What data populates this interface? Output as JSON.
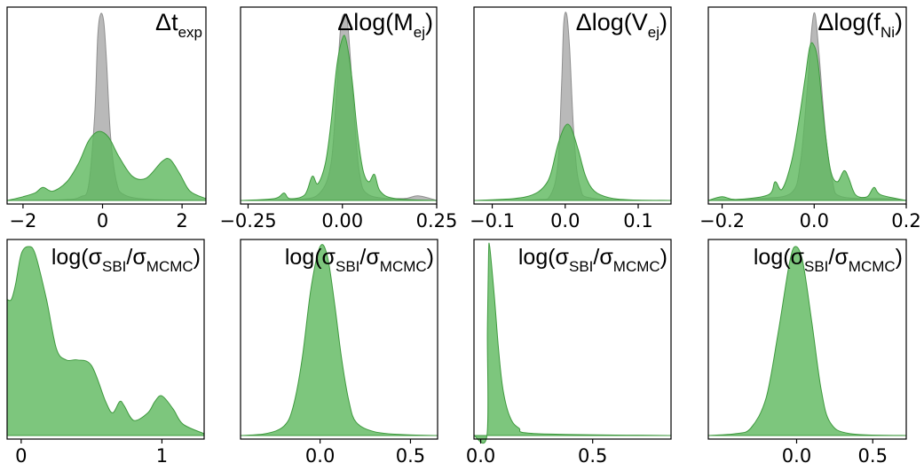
{
  "colors": {
    "mcmc": "#a9a9a9",
    "sbi": "#5cb85c"
  },
  "chart_data": [
    {
      "type": "area",
      "title": {
        "pre": "Δt",
        "sub": "exp",
        "post": ""
      },
      "xlim": [
        -2.4,
        2.6
      ],
      "xticks": [
        -2,
        0,
        2
      ],
      "xtick_labels": [
        "−2",
        "0",
        "2"
      ],
      "series": [
        {
          "key": "mcmc",
          "points": [
            [
              -2.4,
              0
            ],
            [
              -1.0,
              0.004
            ],
            [
              -0.55,
              0.02
            ],
            [
              -0.35,
              0.08
            ],
            [
              -0.2,
              0.45
            ],
            [
              -0.12,
              0.88
            ],
            [
              -0.05,
              1.0
            ],
            [
              0.03,
              0.96
            ],
            [
              0.1,
              0.75
            ],
            [
              0.2,
              0.35
            ],
            [
              0.35,
              0.1
            ],
            [
              0.55,
              0.03
            ],
            [
              1.2,
              0.005
            ],
            [
              2.6,
              0
            ]
          ]
        },
        {
          "key": "sbi",
          "points": [
            [
              -2.4,
              0
            ],
            [
              -2.0,
              0.02
            ],
            [
              -1.7,
              0.04
            ],
            [
              -1.5,
              0.07
            ],
            [
              -1.25,
              0.05
            ],
            [
              -0.9,
              0.1
            ],
            [
              -0.6,
              0.2
            ],
            [
              -0.35,
              0.32
            ],
            [
              -0.1,
              0.37
            ],
            [
              0.15,
              0.34
            ],
            [
              0.4,
              0.24
            ],
            [
              0.75,
              0.13
            ],
            [
              1.1,
              0.12
            ],
            [
              1.5,
              0.21
            ],
            [
              1.7,
              0.22
            ],
            [
              1.95,
              0.14
            ],
            [
              2.2,
              0.05
            ],
            [
              2.6,
              0.01
            ]
          ]
        }
      ]
    },
    {
      "type": "area",
      "title": {
        "pre": "Δlog(M",
        "sub": "ej",
        "post": ")"
      },
      "xlim": [
        -0.27,
        0.25
      ],
      "xticks": [
        -0.25,
        0.0,
        0.25
      ],
      "xtick_labels": [
        "−0.25",
        "0.00",
        "0.25"
      ],
      "series": [
        {
          "key": "mcmc",
          "points": [
            [
              -0.27,
              0
            ],
            [
              -0.12,
              0.005
            ],
            [
              -0.06,
              0.04
            ],
            [
              -0.03,
              0.2
            ],
            [
              -0.015,
              0.6
            ],
            [
              -0.005,
              0.92
            ],
            [
              0.005,
              1.0
            ],
            [
              0.015,
              0.93
            ],
            [
              0.03,
              0.5
            ],
            [
              0.045,
              0.15
            ],
            [
              0.07,
              0.03
            ],
            [
              0.16,
              0.01
            ],
            [
              0.2,
              0.025
            ],
            [
              0.25,
              0
            ]
          ]
        },
        {
          "key": "sbi",
          "points": [
            [
              -0.27,
              0
            ],
            [
              -0.18,
              0.01
            ],
            [
              -0.155,
              0.04
            ],
            [
              -0.14,
              0.01
            ],
            [
              -0.1,
              0.03
            ],
            [
              -0.08,
              0.13
            ],
            [
              -0.065,
              0.09
            ],
            [
              -0.045,
              0.2
            ],
            [
              -0.03,
              0.42
            ],
            [
              -0.015,
              0.72
            ],
            [
              0.0,
              0.87
            ],
            [
              0.01,
              0.86
            ],
            [
              0.025,
              0.66
            ],
            [
              0.04,
              0.36
            ],
            [
              0.055,
              0.16
            ],
            [
              0.07,
              0.1
            ],
            [
              0.085,
              0.14
            ],
            [
              0.1,
              0.05
            ],
            [
              0.14,
              0.01
            ],
            [
              0.25,
              0
            ]
          ]
        }
      ]
    },
    {
      "type": "area",
      "title": {
        "pre": "Δlog(V",
        "sub": "ej",
        "post": ")"
      },
      "xlim": [
        -0.125,
        0.145
      ],
      "xticks": [
        -0.1,
        0.0,
        0.1
      ],
      "xtick_labels": [
        "−0.1",
        "0.0",
        "0.1"
      ],
      "series": [
        {
          "key": "mcmc",
          "points": [
            [
              -0.125,
              0
            ],
            [
              -0.04,
              0.004
            ],
            [
              -0.02,
              0.03
            ],
            [
              -0.01,
              0.2
            ],
            [
              -0.005,
              0.62
            ],
            [
              -0.002,
              0.95
            ],
            [
              0.002,
              1.0
            ],
            [
              0.006,
              0.82
            ],
            [
              0.012,
              0.35
            ],
            [
              0.02,
              0.08
            ],
            [
              0.04,
              0.01
            ],
            [
              0.145,
              0
            ]
          ]
        },
        {
          "key": "sbi",
          "points": [
            [
              -0.125,
              0
            ],
            [
              -0.07,
              0.01
            ],
            [
              -0.045,
              0.03
            ],
            [
              -0.03,
              0.07
            ],
            [
              -0.02,
              0.14
            ],
            [
              -0.01,
              0.3
            ],
            [
              0.0,
              0.4
            ],
            [
              0.008,
              0.39
            ],
            [
              0.018,
              0.27
            ],
            [
              0.028,
              0.13
            ],
            [
              0.04,
              0.05
            ],
            [
              0.06,
              0.015
            ],
            [
              0.09,
              0.003
            ],
            [
              0.145,
              0
            ]
          ]
        }
      ]
    },
    {
      "type": "area",
      "title": {
        "pre": "Δlog(f",
        "sub": "Ni",
        "post": ")"
      },
      "xlim": [
        -0.23,
        0.2
      ],
      "xticks": [
        -0.2,
        0.0,
        0.2
      ],
      "xtick_labels": [
        "−0.2",
        "0.0",
        "0.2"
      ],
      "series": [
        {
          "key": "mcmc",
          "points": [
            [
              -0.23,
              0
            ],
            [
              -0.16,
              0.005
            ],
            [
              -0.12,
              0.01
            ],
            [
              -0.05,
              0.04
            ],
            [
              -0.03,
              0.2
            ],
            [
              -0.015,
              0.6
            ],
            [
              -0.005,
              0.93
            ],
            [
              0.002,
              1.0
            ],
            [
              0.01,
              0.8
            ],
            [
              0.025,
              0.35
            ],
            [
              0.04,
              0.1
            ],
            [
              0.06,
              0.02
            ],
            [
              0.16,
              0.01
            ],
            [
              0.2,
              0
            ]
          ]
        },
        {
          "key": "sbi",
          "points": [
            [
              -0.23,
              0
            ],
            [
              -0.2,
              0.02
            ],
            [
              -0.17,
              0.005
            ],
            [
              -0.1,
              0.03
            ],
            [
              -0.085,
              0.1
            ],
            [
              -0.07,
              0.06
            ],
            [
              -0.05,
              0.2
            ],
            [
              -0.035,
              0.4
            ],
            [
              -0.02,
              0.65
            ],
            [
              -0.01,
              0.82
            ],
            [
              -0.002,
              0.84
            ],
            [
              0.008,
              0.75
            ],
            [
              0.02,
              0.45
            ],
            [
              0.035,
              0.17
            ],
            [
              0.05,
              0.1
            ],
            [
              0.065,
              0.16
            ],
            [
              0.075,
              0.12
            ],
            [
              0.09,
              0.03
            ],
            [
              0.115,
              0.02
            ],
            [
              0.13,
              0.07
            ],
            [
              0.145,
              0.03
            ],
            [
              0.2,
              0
            ]
          ]
        }
      ]
    },
    {
      "type": "area",
      "title": {
        "pre": "log(σ",
        "sub": "SBI",
        "post": "/σ",
        "sub2": "MCMC",
        "post2": ")"
      },
      "xlim": [
        -0.1,
        1.3
      ],
      "xticks": [
        0,
        1
      ],
      "xtick_labels": [
        "0",
        "1"
      ],
      "series": [
        {
          "key": "sbi",
          "points": [
            [
              -0.1,
              0.72
            ],
            [
              -0.07,
              0.72
            ],
            [
              -0.04,
              0.8
            ],
            [
              0.0,
              0.96
            ],
            [
              0.05,
              1.0
            ],
            [
              0.1,
              0.96
            ],
            [
              0.18,
              0.72
            ],
            [
              0.25,
              0.46
            ],
            [
              0.32,
              0.4
            ],
            [
              0.4,
              0.4
            ],
            [
              0.5,
              0.37
            ],
            [
              0.6,
              0.18
            ],
            [
              0.65,
              0.12
            ],
            [
              0.7,
              0.18
            ],
            [
              0.73,
              0.16
            ],
            [
              0.8,
              0.08
            ],
            [
              0.9,
              0.12
            ],
            [
              0.95,
              0.18
            ],
            [
              1.0,
              0.21
            ],
            [
              1.08,
              0.14
            ],
            [
              1.15,
              0.06
            ],
            [
              1.3,
              0.01
            ]
          ]
        }
      ]
    },
    {
      "type": "area",
      "title": {
        "pre": "log(σ",
        "sub": "SBI",
        "post": "/σ",
        "sub2": "MCMC",
        "post2": ")"
      },
      "xlim": [
        -0.44,
        0.65
      ],
      "xticks": [
        0.0,
        0.5
      ],
      "xtick_labels": [
        "0.0",
        "0.5"
      ],
      "series": [
        {
          "key": "sbi",
          "points": [
            [
              -0.44,
              0
            ],
            [
              -0.3,
              0.01
            ],
            [
              -0.2,
              0.05
            ],
            [
              -0.15,
              0.15
            ],
            [
              -0.1,
              0.4
            ],
            [
              -0.05,
              0.78
            ],
            [
              0.0,
              1.0
            ],
            [
              0.04,
              0.95
            ],
            [
              0.08,
              0.7
            ],
            [
              0.12,
              0.4
            ],
            [
              0.16,
              0.18
            ],
            [
              0.2,
              0.07
            ],
            [
              0.3,
              0.02
            ],
            [
              0.45,
              0.005
            ],
            [
              0.65,
              0
            ]
          ]
        }
      ]
    },
    {
      "type": "area",
      "title": {
        "pre": "log(σ",
        "sub": "SBI",
        "post": "/σ",
        "sub2": "MCMC",
        "post2": ")"
      },
      "xlim": [
        -0.03,
        0.85
      ],
      "xticks": [
        0.0,
        0.5
      ],
      "xtick_labels": [
        "0.0",
        "0.5"
      ],
      "series": [
        {
          "key": "sbi",
          "points": [
            [
              -0.03,
              0
            ],
            [
              0.028,
              0
            ],
            [
              0.03,
              0.55
            ],
            [
              0.035,
              0.95
            ],
            [
              0.04,
              1.0
            ],
            [
              0.06,
              0.75
            ],
            [
              0.08,
              0.45
            ],
            [
              0.1,
              0.24
            ],
            [
              0.13,
              0.1
            ],
            [
              0.17,
              0.04
            ],
            [
              0.25,
              0.01
            ],
            [
              0.85,
              0
            ]
          ]
        }
      ]
    },
    {
      "type": "area",
      "title": {
        "pre": "log(σ",
        "sub": "SBI",
        "post": "/σ",
        "sub2": "MCMC",
        "post2": ")"
      },
      "xlim": [
        -0.58,
        0.72
      ],
      "xticks": [
        0.0,
        0.5
      ],
      "xtick_labels": [
        "0.0",
        "0.5"
      ],
      "series": [
        {
          "key": "sbi",
          "points": [
            [
              -0.58,
              0
            ],
            [
              -0.4,
              0.01
            ],
            [
              -0.3,
              0.04
            ],
            [
              -0.2,
              0.2
            ],
            [
              -0.12,
              0.55
            ],
            [
              -0.05,
              0.9
            ],
            [
              -0.01,
              1.0
            ],
            [
              0.04,
              0.92
            ],
            [
              0.1,
              0.6
            ],
            [
              0.16,
              0.25
            ],
            [
              0.22,
              0.07
            ],
            [
              0.35,
              0.01
            ],
            [
              0.72,
              0
            ]
          ]
        }
      ]
    }
  ]
}
